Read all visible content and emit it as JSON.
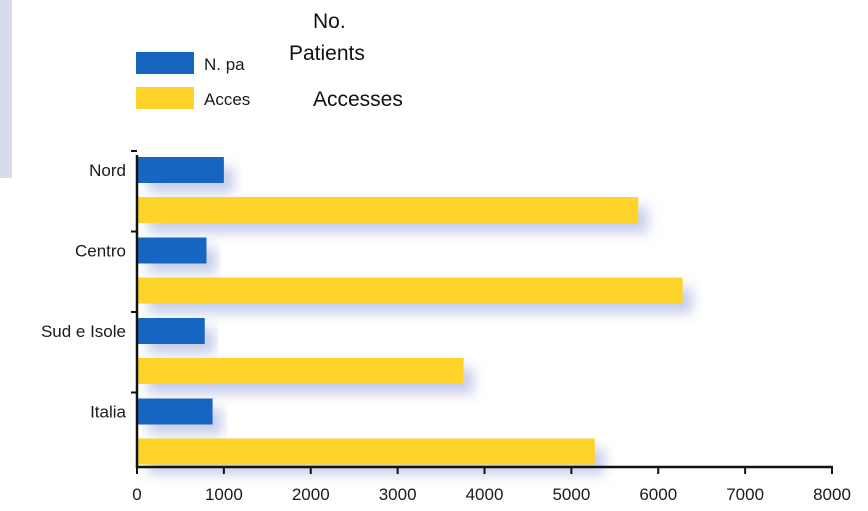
{
  "chart_data": {
    "type": "bar",
    "orientation": "horizontal",
    "categories": [
      "Nord",
      "Centro",
      "Sud e Isole",
      "Italia"
    ],
    "series": [
      {
        "name": "N. pa",
        "color": "#1565c0",
        "values": [
          1000,
          800,
          780,
          870
        ]
      },
      {
        "name": "Acces",
        "color": "#ffd42a",
        "values": [
          5770,
          6280,
          3760,
          5270
        ]
      }
    ],
    "xlim": [
      0,
      8000
    ],
    "xticks": [
      "0",
      "1000",
      "2000",
      "3000",
      "4000",
      "5000",
      "6000",
      "7000",
      "8000"
    ],
    "grid": false,
    "legend_position": "top-left"
  },
  "overlay": {
    "line1": "No.",
    "line2": "Patients",
    "line3": "Accesses"
  }
}
